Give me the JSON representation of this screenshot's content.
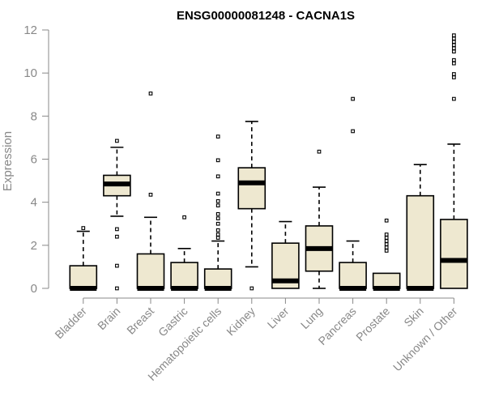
{
  "chart_data": {
    "type": "boxplot",
    "title": "ENSG00000081248 - CACNA1S",
    "xlabel": "",
    "ylabel": "Expression",
    "ylim": [
      0,
      12
    ],
    "yticks": [
      0,
      2,
      4,
      6,
      8,
      10,
      12
    ],
    "grid": false,
    "colors": {
      "box_fill": "#EEE8D0",
      "stroke": "#000000",
      "axis": "#888888"
    },
    "categories": [
      "Bladder",
      "Brain",
      "Breast",
      "Gastric",
      "Hematopoietic cells",
      "Kidney",
      "Liver",
      "Lung",
      "Pancreas",
      "Prostate",
      "Skin",
      "Unknown / Other"
    ],
    "boxes": [
      {
        "name": "Bladder",
        "whislo": 0,
        "q1": 0,
        "med": 0,
        "q3": 1.05,
        "whishi": 2.65,
        "fliers": [
          2.8
        ]
      },
      {
        "name": "Brain",
        "whislo": 3.35,
        "q1": 4.3,
        "med": 4.85,
        "q3": 5.25,
        "whishi": 6.55,
        "fliers": [
          6.85,
          2.75,
          2.4,
          1.05,
          0
        ]
      },
      {
        "name": "Breast",
        "whislo": 0,
        "q1": 0,
        "med": 0,
        "q3": 1.6,
        "whishi": 3.3,
        "fliers": [
          9.05,
          4.35
        ]
      },
      {
        "name": "Gastric",
        "whislo": 0,
        "q1": 0,
        "med": 0,
        "q3": 1.2,
        "whishi": 1.85,
        "fliers": [
          3.3
        ]
      },
      {
        "name": "Hematopoietic cells",
        "whislo": 0,
        "q1": 0,
        "med": 0,
        "q3": 0.9,
        "whishi": 2.2,
        "fliers": [
          7.05,
          5.95,
          5.2,
          4.4,
          4.05,
          3.85,
          3.45,
          3.25,
          3.0,
          2.7,
          2.5,
          2.35
        ]
      },
      {
        "name": "Kidney",
        "whislo": 1.0,
        "q1": 3.7,
        "med": 4.9,
        "q3": 5.6,
        "whishi": 7.75,
        "fliers": [
          0
        ]
      },
      {
        "name": "Liver",
        "whislo": 0,
        "q1": 0,
        "med": 0.35,
        "q3": 2.1,
        "whishi": 3.1,
        "fliers": []
      },
      {
        "name": "Lung",
        "whislo": 0,
        "q1": 0.8,
        "med": 1.85,
        "q3": 2.9,
        "whishi": 4.7,
        "fliers": [
          6.35
        ]
      },
      {
        "name": "Pancreas",
        "whislo": 0,
        "q1": 0,
        "med": 0,
        "q3": 1.2,
        "whishi": 2.2,
        "fliers": [
          8.8,
          7.3
        ]
      },
      {
        "name": "Prostate",
        "whislo": 0,
        "q1": 0,
        "med": 0,
        "q3": 0.7,
        "whishi": 0.7,
        "fliers": [
          3.15,
          2.5,
          2.35,
          2.2,
          2.05,
          1.9,
          1.75
        ]
      },
      {
        "name": "Skin",
        "whislo": 0,
        "q1": 0,
        "med": 0,
        "q3": 4.3,
        "whishi": 5.75,
        "fliers": []
      },
      {
        "name": "Unknown / Other",
        "whislo": 0,
        "q1": 0,
        "med": 1.3,
        "q3": 3.2,
        "whishi": 6.7,
        "fliers": [
          11.75,
          11.6,
          11.45,
          11.3,
          11.15,
          11.0,
          10.6,
          10.45,
          9.95,
          9.8,
          8.8
        ]
      }
    ]
  }
}
